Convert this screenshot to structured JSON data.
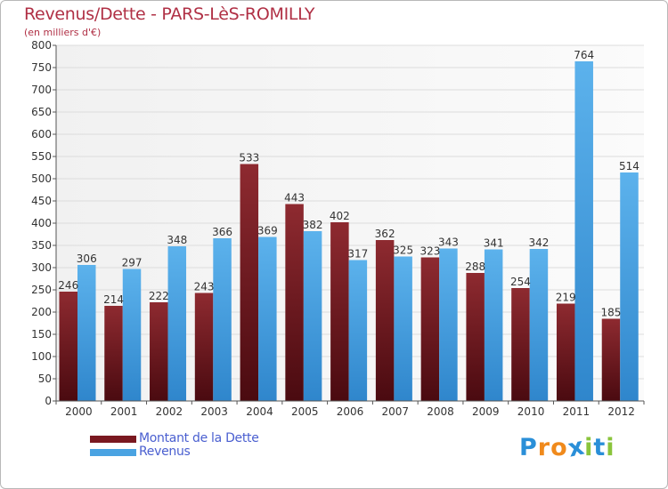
{
  "chart_data": {
    "type": "bar",
    "title": "Revenus/Dette - PARS-LèS-ROMILLY",
    "subtitle": "(en milliers d'€)",
    "xlabel": "",
    "ylabel": "",
    "ylim": [
      0,
      800
    ],
    "yticks": [
      0,
      50,
      100,
      150,
      200,
      250,
      300,
      350,
      400,
      450,
      500,
      550,
      600,
      650,
      700,
      750,
      800
    ],
    "grid": true,
    "legend_position": "bottom-left",
    "categories": [
      "2000",
      "2001",
      "2002",
      "2003",
      "2004",
      "2005",
      "2006",
      "2007",
      "2008",
      "2009",
      "2010",
      "2011",
      "2012"
    ],
    "series": [
      {
        "name": "Montant de la Dette",
        "color": "#7a1820",
        "values": [
          246,
          214,
          222,
          243,
          533,
          443,
          402,
          362,
          323,
          288,
          254,
          219,
          185
        ]
      },
      {
        "name": "Revenus",
        "color": "#4aa3e2",
        "values": [
          306,
          297,
          348,
          366,
          369,
          382,
          317,
          325,
          343,
          341,
          342,
          764,
          514
        ]
      }
    ]
  },
  "logo": {
    "text": "Proxiti",
    "letters": [
      {
        "char": "P",
        "color": "#2a8fd8"
      },
      {
        "char": "r",
        "color": "#f08a1c"
      },
      {
        "char": "o",
        "color": "#f08a1c"
      },
      {
        "char": "x",
        "color": "#2a8fd8"
      },
      {
        "char": "i",
        "color": "#8ac43c"
      },
      {
        "char": "t",
        "color": "#2a8fd8"
      },
      {
        "char": "i",
        "color": "#8ac43c"
      }
    ]
  }
}
